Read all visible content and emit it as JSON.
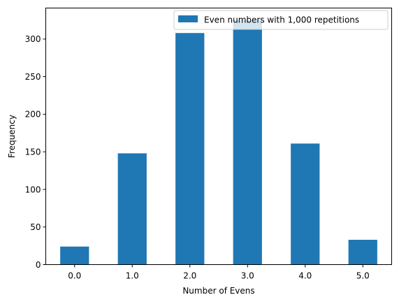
{
  "chart_data": {
    "type": "bar",
    "categories": [
      "0.0",
      "1.0",
      "2.0",
      "3.0",
      "4.0",
      "5.0"
    ],
    "series": [
      {
        "name": "Even numbers with 1,000 repetitions",
        "values": [
          24,
          148,
          308,
          325,
          161,
          33
        ],
        "color": "#1f77b4"
      }
    ],
    "xlabel": "Number of Evens",
    "ylabel": "Frequency",
    "ylim": [
      0,
      341.25
    ],
    "yticks": [
      "0",
      "50",
      "100",
      "150",
      "200",
      "250",
      "300"
    ],
    "legend_position": "top-right",
    "grid": false
  }
}
